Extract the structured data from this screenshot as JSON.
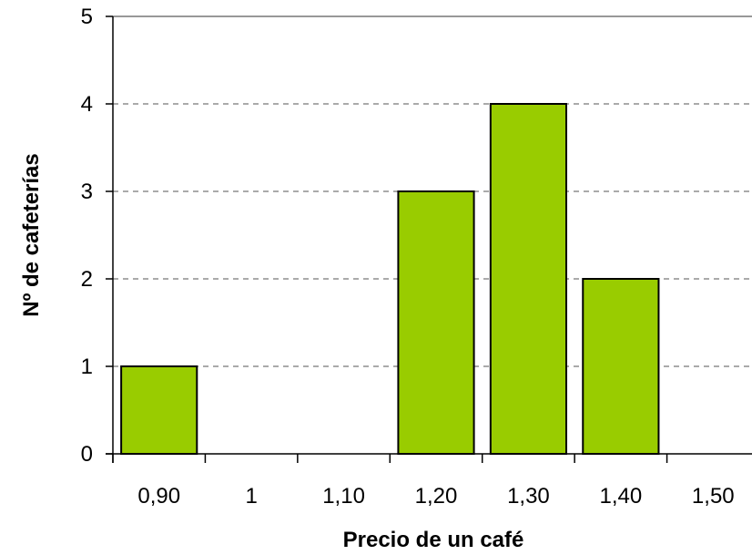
{
  "chart_data": {
    "type": "bar",
    "title": "",
    "xlabel": "Precio de un café",
    "ylabel": "Nº de cafeterías",
    "categories": [
      "0,90",
      "1",
      "1,10",
      "1,20",
      "1,30",
      "1,40",
      "1,50"
    ],
    "values": [
      1,
      0,
      0,
      3,
      4,
      2,
      0
    ],
    "ylim": [
      0,
      5
    ],
    "yticks": [
      "0",
      "1",
      "2",
      "3",
      "4",
      "5"
    ],
    "grid": "dashed horizontal",
    "bar_color": "#99cc00",
    "bar_edge_color": "#000000"
  }
}
